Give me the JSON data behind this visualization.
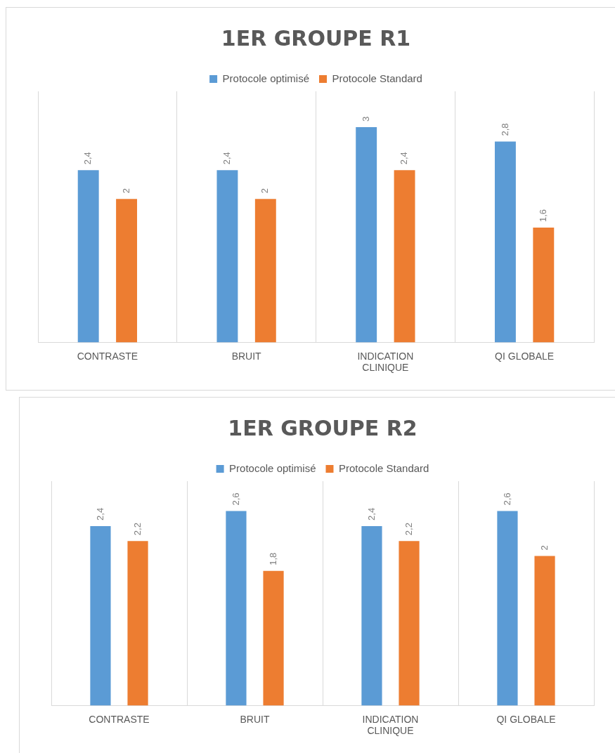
{
  "chart_data": [
    {
      "type": "bar",
      "title": "1ER GROUPE R1",
      "categories": [
        "CONTRASTE",
        "BRUIT",
        "INDICATION CLINIQUE",
        "QI GLOBALE"
      ],
      "legend": "top",
      "grid": "x",
      "tick_labels": "x",
      "series": [
        {
          "name": "Protocole optimisé",
          "color": "#5b9bd5",
          "values": [
            2.4,
            2.4,
            3,
            2.8
          ],
          "value_labels": [
            "2,4",
            "2,4",
            "3",
            "2,8"
          ]
        },
        {
          "name": "Protocole Standard",
          "color": "#ed7d31",
          "values": [
            2,
            2,
            2.4,
            1.6
          ],
          "value_labels": [
            "2",
            "2",
            "2,4",
            "1,6"
          ]
        }
      ]
    },
    {
      "type": "bar",
      "title": "1ER GROUPE R2",
      "categories": [
        "CONTRASTE",
        "BRUIT",
        "INDICATION CLINIQUE",
        "QI GLOBALE"
      ],
      "legend": "top",
      "grid": "x",
      "tick_labels": "x",
      "series": [
        {
          "name": "Protocole optimisé",
          "color": "#5b9bd5",
          "values": [
            2.4,
            2.6,
            2.4,
            2.6
          ],
          "value_labels": [
            "2,4",
            "2,6",
            "2,4",
            "2,6"
          ]
        },
        {
          "name": "Protocole Standard",
          "color": "#ed7d31",
          "values": [
            2.2,
            1.8,
            2.2,
            2
          ],
          "value_labels": [
            "2,2",
            "1,8",
            "2,2",
            "2"
          ]
        }
      ]
    }
  ]
}
